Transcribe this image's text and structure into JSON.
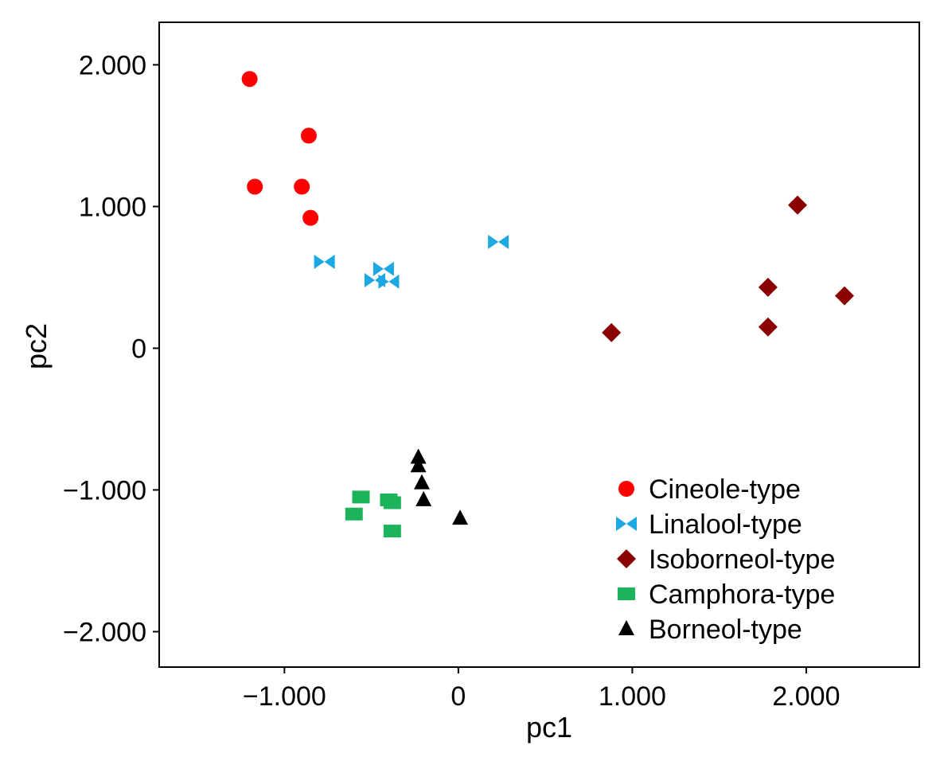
{
  "chart_data": {
    "type": "scatter",
    "title": "",
    "xlabel": "pc1",
    "ylabel": "pc2",
    "xlim": [
      -1.72,
      2.65
    ],
    "ylim": [
      -2.25,
      2.3
    ],
    "x_ticks": [
      -1.0,
      0,
      1.0,
      2.0
    ],
    "x_tick_labels": [
      "−1.000",
      "0",
      "1.000",
      "2.000"
    ],
    "y_ticks": [
      -2.0,
      -1.0,
      0,
      1.0,
      2.0
    ],
    "y_tick_labels": [
      "−2.000",
      "−1.000",
      "0",
      "1.000",
      "2.000"
    ],
    "grid": false,
    "legend_position": "bottom-right",
    "series": [
      {
        "name": "Cineole-type",
        "marker": "circle",
        "color": "#ff0000",
        "points": [
          [
            -1.2,
            1.9
          ],
          [
            -0.86,
            1.5
          ],
          [
            -1.17,
            1.14
          ],
          [
            -0.9,
            1.14
          ],
          [
            -0.85,
            0.92
          ]
        ]
      },
      {
        "name": "Linalool-type",
        "marker": "bowtie",
        "color": "#1ca8e3",
        "points": [
          [
            -0.77,
            0.61
          ],
          [
            -0.43,
            0.56
          ],
          [
            -0.48,
            0.48
          ],
          [
            -0.4,
            0.47
          ],
          [
            0.23,
            0.75
          ]
        ]
      },
      {
        "name": "Isoborneol-type",
        "marker": "diamond",
        "color": "#8b0000",
        "points": [
          [
            1.95,
            1.01
          ],
          [
            1.78,
            0.43
          ],
          [
            2.22,
            0.37
          ],
          [
            1.78,
            0.15
          ],
          [
            0.88,
            0.11
          ]
        ]
      },
      {
        "name": "Camphora-type",
        "marker": "square",
        "color": "#1db35a",
        "points": [
          [
            -0.56,
            -1.05
          ],
          [
            -0.4,
            -1.07
          ],
          [
            -0.38,
            -1.09
          ],
          [
            -0.6,
            -1.17
          ],
          [
            -0.38,
            -1.29
          ]
        ]
      },
      {
        "name": "Borneol-type",
        "marker": "triangle",
        "color": "#000000",
        "points": [
          [
            -0.23,
            -0.77
          ],
          [
            -0.23,
            -0.83
          ],
          [
            -0.21,
            -0.95
          ],
          [
            -0.2,
            -1.07
          ],
          [
            0.01,
            -1.2
          ]
        ]
      }
    ]
  }
}
